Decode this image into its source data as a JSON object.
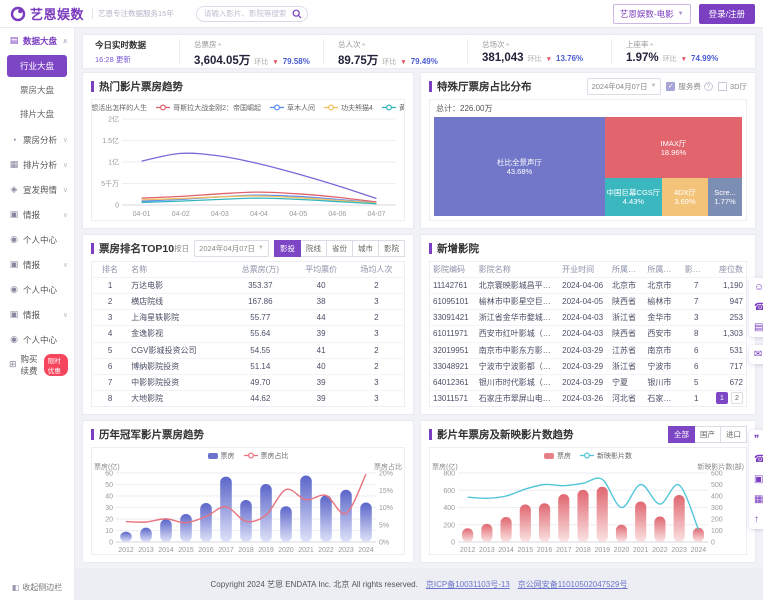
{
  "header": {
    "logo_text": "艺恩娱数",
    "logo_tagline": "艺恩专注数据服务15年",
    "search_placeholder": "请输入影片、影院等搜索",
    "product_select": "艺恩娱数-电影",
    "login_button": "登录/注册"
  },
  "sidebar": {
    "sections": [
      {
        "label": "数据大盘",
        "icon": "dashboard-icon",
        "active": true,
        "chevron": "up",
        "children": [
          {
            "label": "行业大盘",
            "active": true
          },
          {
            "label": "票房大盘",
            "active": false
          },
          {
            "label": "排片大盘",
            "active": false
          }
        ]
      },
      {
        "label": "票房分析",
        "icon": "boxoffice-icon",
        "chevron": "down"
      },
      {
        "label": "排片分析",
        "icon": "schedule-icon",
        "chevron": "down"
      },
      {
        "label": "宣发舆情",
        "icon": "publicity-icon",
        "chevron": "down"
      },
      {
        "label": "情报",
        "icon": "intel-icon",
        "chevron": "down"
      },
      {
        "label": "个人中心",
        "icon": "user-icon",
        "chevron": ""
      },
      {
        "label": "情报",
        "icon": "intel-icon",
        "chevron": "down"
      },
      {
        "label": "个人中心",
        "icon": "user-icon",
        "chevron": ""
      },
      {
        "label": "情报",
        "icon": "intel-icon",
        "chevron": "down"
      },
      {
        "label": "个人中心",
        "icon": "user-icon",
        "chevron": ""
      },
      {
        "label": "购买续费",
        "icon": "cart-icon",
        "chevron": "",
        "badge": "限时优惠"
      }
    ],
    "collapse_label": "收起侧边栏"
  },
  "stats": {
    "title": "今日实时数据",
    "updated": "16:28 更新",
    "metrics": [
      {
        "label": "总票房",
        "value": "3,604.05万",
        "compare": "环比",
        "delta": "79.58%",
        "direction": "down"
      },
      {
        "label": "总人次",
        "value": "89.75万",
        "compare": "环比",
        "delta": "79.49%",
        "direction": "down"
      },
      {
        "label": "总场次",
        "value": "381,043",
        "compare": "环比",
        "delta": "13.76%",
        "direction": "down"
      },
      {
        "label": "上座率",
        "value": "1.97%",
        "compare": "环比",
        "delta": "74.99%",
        "direction": "down"
      }
    ]
  },
  "panels": {
    "hot_films": {
      "title": "热门影片票房趋势"
    },
    "special_hall": {
      "title": "特殊厅票房占比分布",
      "date": "2024年04月07日",
      "service_fee_label": "服务费",
      "threed_label": "3D厅",
      "total_label": "总计：226.00万"
    },
    "top10": {
      "title": "票房排名TOP10",
      "filter_day_label": "按日",
      "date": "2024年04月07日",
      "tabs": [
        "影投",
        "院线",
        "省份",
        "城市",
        "影院"
      ],
      "active_tab": "影投",
      "columns": [
        "排名",
        "名称",
        "总票房(万)",
        "平均票价",
        "场均人次"
      ],
      "rows": [
        [
          "1",
          "万达电影",
          "353.37",
          "40",
          "2"
        ],
        [
          "2",
          "横店院线",
          "167.86",
          "38",
          "3"
        ],
        [
          "3",
          "上海星轶影院",
          "55.77",
          "44",
          "2"
        ],
        [
          "4",
          "金逸影视",
          "55.64",
          "39",
          "3"
        ],
        [
          "5",
          "CGV影城投资公司",
          "54.55",
          "41",
          "2"
        ],
        [
          "6",
          "博纳影院投资",
          "51.14",
          "40",
          "2"
        ],
        [
          "7",
          "中影影院投资",
          "49.70",
          "39",
          "3"
        ],
        [
          "8",
          "大地影院",
          "44.62",
          "39",
          "3"
        ]
      ]
    },
    "new_cinemas": {
      "title": "新增影院",
      "columns": [
        "影院编码",
        "影院名称",
        "开业时间",
        "所属省份",
        "所属城市",
        "影厅数",
        "座位数"
      ],
      "rows": [
        [
          "11142761",
          "北京寰映影城昌平合生汇店",
          "2024-04-06",
          "北京市",
          "北京市",
          "7",
          "1,190"
        ],
        [
          "61095101",
          "榆林市中影星空巨幕影城",
          "2024-04-05",
          "陕西省",
          "榆林市",
          "7",
          "947"
        ],
        [
          "33091421",
          "浙江省金华市婺城区中保...",
          "2024-04-03",
          "浙江省",
          "金华市",
          "3",
          "253"
        ],
        [
          "61011971",
          "西安市红叶影城（西咸店）",
          "2024-04-03",
          "陕西省",
          "西安市",
          "8",
          "1,303"
        ],
        [
          "32019951",
          "南京市中影东方影城(玄武...",
          "2024-03-29",
          "江苏省",
          "南京市",
          "6",
          "531"
        ],
        [
          "33048921",
          "宁波市宁波影都（大碶店）",
          "2024-03-29",
          "浙江省",
          "宁波市",
          "6",
          "717"
        ],
        [
          "64012361",
          "银川市时代影城（枫林...",
          "2024-03-29",
          "宁夏",
          "银川市",
          "5",
          "672"
        ],
        [
          "13011571",
          "石家庄市翠屏山电影院",
          "2024-03-26",
          "河北省",
          "石家庄市",
          "1",
          "58"
        ]
      ],
      "pagination": [
        "1",
        "2"
      ]
    },
    "champion": {
      "title": "历年冠军影片票房趋势"
    },
    "yearly": {
      "title": "影片年票房及新映影片数趋势",
      "filters": [
        "全部",
        "国产",
        "进口"
      ],
      "active_filter": "全部"
    }
  },
  "footer": {
    "copyright": "Copyright 2024 艺恩 ENDATA Inc. 北京 All rights reserved.",
    "icp": "京ICP备10031103号-13",
    "security": "京公网安备11010502047529号"
  },
  "float_widgets": {
    "groups": [
      {
        "icons": [
          "service-chat-icon",
          "phone-icon",
          "form-icon"
        ]
      },
      {
        "icons": [
          "message-icon"
        ]
      },
      {
        "icons": [
          "chat-icon",
          "phone-icon",
          "doc-icon",
          "qrcode-icon",
          "back-top-icon"
        ]
      }
    ]
  },
  "chart_data": [
    {
      "id": "hot_films",
      "type": "line",
      "title": "热门影片票房趋势",
      "x": [
        "04-01",
        "04-02",
        "04-03",
        "04-04",
        "04-05",
        "04-06",
        "04-07"
      ],
      "ylabel": "票房",
      "ytick_labels": [
        "0",
        "5千万",
        "1亿",
        "1.5亿",
        "2亿"
      ],
      "ylim": [
        0,
        2
      ],
      "unit": "亿",
      "legend_position": "top",
      "grid": true,
      "series": [
        {
          "name": "你想活出怎样的人生",
          "color": "#7B68D8",
          "values": [
            1.02,
            1.2,
            1.14,
            0.96,
            0.72,
            0.45,
            0.15
          ]
        },
        {
          "name": "哥斯拉大战金刚2：帝国崛起",
          "color": "#E0626C",
          "values": [
            0.16,
            0.2,
            0.26,
            0.3,
            0.26,
            0.18,
            0.07
          ]
        },
        {
          "name": "草木人间",
          "color": "#5B8FF9",
          "values": [
            0.09,
            0.13,
            0.19,
            0.23,
            0.2,
            0.13,
            0.05
          ]
        },
        {
          "name": "功夫熊猫4",
          "color": "#F0C060",
          "values": [
            0.12,
            0.15,
            0.19,
            0.21,
            0.17,
            0.11,
            0.05
          ]
        },
        {
          "name": "黄雀在后!",
          "color": "#35B5BF",
          "values": [
            0.06,
            0.09,
            0.13,
            0.16,
            0.13,
            0.08,
            0.03
          ]
        }
      ]
    },
    {
      "id": "special_hall_treemap",
      "type": "treemap",
      "title": "特殊厅票房占比分布",
      "total": "226.00万",
      "items": [
        {
          "name": "杜比全景声厅",
          "pct": "43.68%",
          "color": "#7277C9"
        },
        {
          "name": "IMAX厅",
          "pct": "18.96%",
          "color": "#E2656E"
        },
        {
          "name": "中国巨幕CGS厅",
          "pct": "4.43%",
          "color": "#3BB8BF"
        },
        {
          "name": "4DX厅",
          "pct": "3.69%",
          "color": "#F2C379"
        },
        {
          "name": "Scre...",
          "pct": "1.77%",
          "color": "#7D8EB4"
        }
      ]
    },
    {
      "id": "champion",
      "type": "bar",
      "title": "历年冠军影片票房趋势",
      "categories": [
        "2012",
        "2013",
        "2014",
        "2015",
        "2016",
        "2017",
        "2018",
        "2019",
        "2020",
        "2021",
        "2022",
        "2023",
        "2024"
      ],
      "left_axis": {
        "title": "票房(亿)",
        "ticks": [
          "0",
          "10",
          "20",
          "30",
          "40",
          "50",
          "60"
        ],
        "max": 60
      },
      "right_axis": {
        "title": "票房占比",
        "ticks": [
          "0%",
          "5%",
          "10%",
          "15%",
          "20%"
        ],
        "max": 20
      },
      "series": [
        {
          "name": "票房",
          "type": "bar",
          "color_top": "#5B66C9",
          "color_bottom": "#DFE2F8",
          "values": [
            9.0,
            12.5,
            19.8,
            24.4,
            33.9,
            56.9,
            36.5,
            50.4,
            31.1,
            57.8,
            40.7,
            45.4,
            34.3
          ]
        },
        {
          "name": "票房占比",
          "type": "line",
          "color": "#E8737F",
          "values": [
            5.9,
            5.8,
            6.7,
            5.6,
            7.4,
            10.2,
            6.0,
            7.8,
            15.2,
            12.2,
            13.5,
            8.3,
            19.7
          ]
        }
      ]
    },
    {
      "id": "yearly",
      "type": "bar",
      "title": "影片年票房及新映影片数趋势",
      "categories": [
        "2012",
        "2013",
        "2014",
        "2015",
        "2016",
        "2017",
        "2018",
        "2019",
        "2020",
        "2021",
        "2022",
        "2023",
        "2024"
      ],
      "left_axis": {
        "title": "票房(亿)",
        "ticks": [
          "0",
          "200",
          "400",
          "600",
          "800"
        ],
        "max": 800
      },
      "right_axis": {
        "title": "新映影片数(部)",
        "ticks": [
          "0",
          "100",
          "200",
          "300",
          "400",
          "500",
          "600"
        ],
        "max": 600
      },
      "series": [
        {
          "name": "票房",
          "type": "bar",
          "color_top": "#E06770",
          "color_bottom": "#FAE3E3",
          "values": [
            160,
            210,
            290,
            435,
            450,
            555,
            605,
            640,
            200,
            470,
            295,
            545,
            165
          ]
        },
        {
          "name": "新映影片数",
          "type": "line",
          "color": "#52C5D8",
          "values": [
            390,
            380,
            400,
            460,
            500,
            490,
            510,
            545,
            300,
            500,
            330,
            495,
            110
          ]
        }
      ]
    }
  ]
}
